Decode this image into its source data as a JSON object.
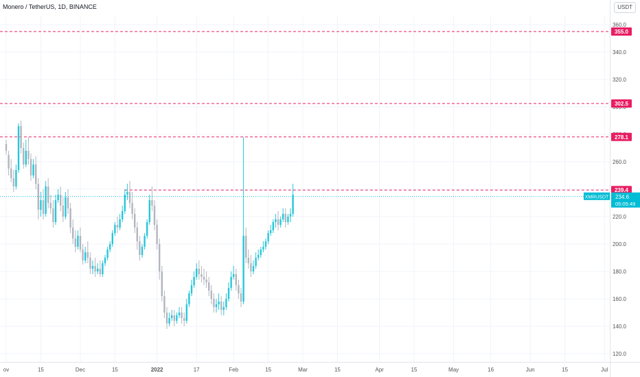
{
  "header": {
    "title": "Monero / TetherUS, 1D, BINANCE",
    "currency_button": "USDT"
  },
  "colors": {
    "up": "#26c6da",
    "down": "#b2b5be",
    "level_line": "#e91e63",
    "current_price": "#00bcd4",
    "axis_text": "#555555",
    "grid": "#f0f3fa"
  },
  "chart_data": {
    "type": "candlestick",
    "symbol": "XMRUSDT",
    "interval": "1D",
    "exchange": "BINANCE",
    "y_axis": {
      "ticks": [
        120,
        140,
        160,
        180,
        200,
        220,
        240,
        260,
        280,
        300,
        320,
        340,
        360
      ],
      "tick_labels": [
        "120.0",
        "140.0",
        "160.0",
        "180.0",
        "200.0",
        "220.0",
        "240.0",
        "260.0",
        "280.0",
        "300.0",
        "320.0",
        "340.0",
        "360.0"
      ],
      "position": "right"
    },
    "x_axis": {
      "ticks": [
        {
          "label": "ov",
          "day": 0
        },
        {
          "label": "15",
          "day": 14
        },
        {
          "label": "Dec",
          "day": 30
        },
        {
          "label": "15",
          "day": 44
        },
        {
          "label": "2022",
          "day": 61,
          "bold": true
        },
        {
          "label": "17",
          "day": 77
        },
        {
          "label": "Feb",
          "day": 92
        },
        {
          "label": "15",
          "day": 106
        },
        {
          "label": "Mar",
          "day": 120
        },
        {
          "label": "15",
          "day": 134
        },
        {
          "label": "Apr",
          "day": 151
        },
        {
          "label": "15",
          "day": 165
        },
        {
          "label": "May",
          "day": 181
        },
        {
          "label": "16",
          "day": 196
        },
        {
          "label": "Jun",
          "day": 212
        },
        {
          "label": "15",
          "day": 226
        },
        {
          "label": "Jul",
          "day": 242
        }
      ]
    },
    "horizontal_levels": [
      {
        "value": 355.0,
        "label": "355.0"
      },
      {
        "value": 302.5,
        "label": "302.5"
      },
      {
        "value": 278.1,
        "label": "278.1"
      },
      {
        "value": 239.4,
        "label": "239.4",
        "start_day": 48
      }
    ],
    "current_price": {
      "value": 234.6,
      "label": "234.6",
      "countdown": "05:05:49",
      "symbol_label": "XMRUSDT"
    },
    "candles": [
      [
        273,
        276,
        268,
        265
      ],
      [
        265,
        268,
        255,
        250
      ],
      [
        255,
        262,
        248,
        245
      ],
      [
        248,
        254,
        242,
        238
      ],
      [
        242,
        258,
        254,
        240
      ],
      [
        254,
        288,
        286,
        252
      ],
      [
        286,
        290,
        270,
        266
      ],
      [
        270,
        274,
        258,
        255
      ],
      [
        258,
        276,
        268,
        256
      ],
      [
        268,
        278,
        262,
        258
      ],
      [
        262,
        266,
        250,
        246
      ],
      [
        250,
        262,
        258,
        248
      ],
      [
        258,
        264,
        244,
        240
      ],
      [
        244,
        248,
        225,
        218
      ],
      [
        225,
        238,
        232,
        220
      ],
      [
        232,
        240,
        222,
        218
      ],
      [
        222,
        246,
        242,
        220
      ],
      [
        242,
        248,
        230,
        226
      ],
      [
        230,
        236,
        226,
        222
      ],
      [
        226,
        232,
        216,
        212
      ],
      [
        216,
        236,
        232,
        214
      ],
      [
        232,
        240,
        236,
        230
      ],
      [
        236,
        242,
        228,
        224
      ],
      [
        228,
        234,
        220,
        216
      ],
      [
        220,
        238,
        234,
        218
      ],
      [
        234,
        240,
        226,
        222
      ],
      [
        226,
        230,
        212,
        208
      ],
      [
        212,
        218,
        204,
        200
      ],
      [
        204,
        210,
        198,
        194
      ],
      [
        198,
        210,
        206,
        196
      ],
      [
        206,
        212,
        196,
        194
      ],
      [
        196,
        200,
        188,
        185
      ],
      [
        188,
        198,
        194,
        186
      ],
      [
        194,
        202,
        190,
        186
      ],
      [
        190,
        194,
        182,
        178
      ],
      [
        182,
        188,
        184,
        178
      ],
      [
        184,
        190,
        180,
        176
      ],
      [
        180,
        186,
        182,
        178
      ],
      [
        182,
        188,
        178,
        176
      ],
      [
        178,
        188,
        186,
        176
      ],
      [
        186,
        192,
        190,
        184
      ],
      [
        190,
        198,
        196,
        188
      ],
      [
        196,
        202,
        200,
        194
      ],
      [
        200,
        210,
        208,
        198
      ],
      [
        208,
        216,
        214,
        206
      ],
      [
        214,
        220,
        212,
        208
      ],
      [
        212,
        222,
        218,
        210
      ],
      [
        218,
        228,
        224,
        216
      ],
      [
        224,
        240,
        236,
        222
      ],
      [
        236,
        244,
        238,
        232
      ],
      [
        238,
        246,
        230,
        226
      ],
      [
        230,
        238,
        222,
        218
      ],
      [
        222,
        226,
        212,
        208
      ],
      [
        212,
        216,
        202,
        196
      ],
      [
        202,
        206,
        192,
        188
      ],
      [
        192,
        200,
        198,
        190
      ],
      [
        198,
        208,
        206,
        196
      ],
      [
        206,
        218,
        216,
        204
      ],
      [
        216,
        236,
        232,
        214
      ],
      [
        232,
        242,
        228,
        224
      ],
      [
        228,
        232,
        214,
        210
      ],
      [
        214,
        218,
        200,
        196
      ],
      [
        200,
        204,
        180,
        174
      ],
      [
        180,
        184,
        162,
        158
      ],
      [
        162,
        166,
        150,
        146
      ],
      [
        150,
        154,
        142,
        138
      ],
      [
        142,
        150,
        146,
        140
      ],
      [
        146,
        152,
        148,
        144
      ],
      [
        148,
        152,
        144,
        140
      ],
      [
        144,
        150,
        148,
        142
      ],
      [
        148,
        154,
        150,
        146
      ],
      [
        150,
        154,
        146,
        142
      ],
      [
        146,
        150,
        144,
        140
      ],
      [
        144,
        160,
        156,
        142
      ],
      [
        156,
        166,
        164,
        154
      ],
      [
        164,
        174,
        170,
        162
      ],
      [
        170,
        180,
        176,
        168
      ],
      [
        176,
        186,
        182,
        174
      ],
      [
        182,
        188,
        178,
        174
      ],
      [
        178,
        184,
        176,
        172
      ],
      [
        176,
        182,
        174,
        170
      ],
      [
        174,
        180,
        172,
        168
      ],
      [
        172,
        176,
        166,
        162
      ],
      [
        166,
        170,
        160,
        156
      ],
      [
        160,
        164,
        154,
        150
      ],
      [
        154,
        160,
        156,
        150
      ],
      [
        156,
        164,
        158,
        152
      ],
      [
        158,
        162,
        152,
        148
      ],
      [
        152,
        158,
        154,
        148
      ],
      [
        154,
        164,
        160,
        152
      ],
      [
        160,
        172,
        168,
        158
      ],
      [
        168,
        180,
        176,
        166
      ],
      [
        176,
        184,
        178,
        174
      ],
      [
        178,
        182,
        170,
        166
      ],
      [
        170,
        174,
        164,
        160
      ],
      [
        164,
        168,
        158,
        154
      ],
      [
        158,
        278,
        206,
        156
      ],
      [
        206,
        212,
        190,
        186
      ],
      [
        190,
        196,
        186,
        182
      ],
      [
        186,
        192,
        180,
        176
      ],
      [
        180,
        188,
        184,
        178
      ],
      [
        184,
        194,
        190,
        182
      ],
      [
        190,
        196,
        192,
        188
      ],
      [
        192,
        198,
        196,
        190
      ],
      [
        196,
        202,
        198,
        194
      ],
      [
        198,
        204,
        202,
        196
      ],
      [
        202,
        210,
        208,
        200
      ],
      [
        208,
        214,
        210,
        206
      ],
      [
        210,
        218,
        216,
        208
      ],
      [
        216,
        222,
        218,
        212
      ],
      [
        218,
        224,
        214,
        210
      ],
      [
        214,
        220,
        218,
        212
      ],
      [
        218,
        226,
        222,
        216
      ],
      [
        222,
        226,
        216,
        212
      ],
      [
        216,
        222,
        220,
        214
      ],
      [
        220,
        226,
        222,
        216
      ],
      [
        222,
        244,
        236,
        220
      ]
    ]
  }
}
